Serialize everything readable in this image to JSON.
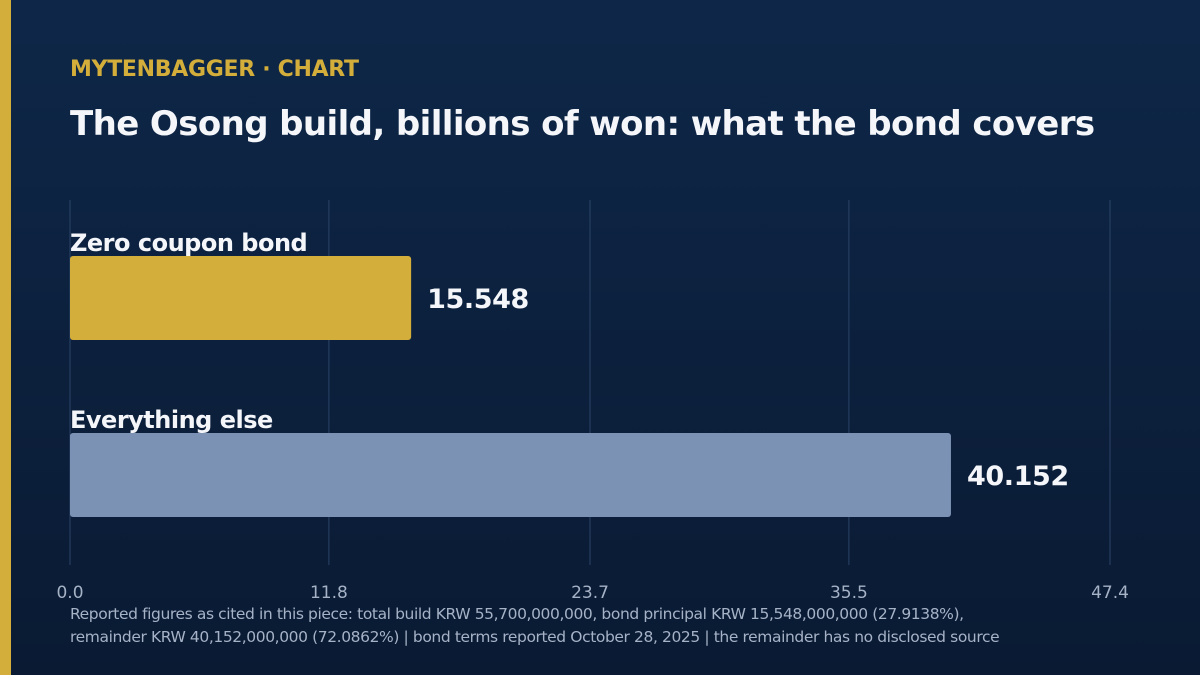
{
  "header": {
    "kicker": "MYTENBAGGER · CHART"
  },
  "chart_data": {
    "type": "bar",
    "orientation": "horizontal",
    "title": "The Osong build, billions of won: what the bond covers",
    "categories": [
      "Zero coupon bond",
      "Everything else"
    ],
    "values": [
      15.548,
      40.152
    ],
    "value_labels": [
      "15.548",
      "40.152"
    ],
    "bar_colors": [
      "#d4ae3a",
      "#7b92b4"
    ],
    "xlim": [
      0,
      47.4
    ],
    "xticks": [
      0,
      11.8,
      23.7,
      35.5,
      47.4
    ],
    "xtick_labels": [
      "0.0",
      "11.8",
      "23.7",
      "35.5",
      "47.4"
    ],
    "xlabel": "",
    "ylabel": "",
    "grid": "vertical",
    "legend": "none"
  },
  "footnote": {
    "line1": "Reported figures as cited in this piece: total build KRW 55,700,000,000, bond principal KRW 15,548,000,000 (27.9138%),",
    "line2": "remainder KRW 40,152,000,000 (72.0862%) | bond terms reported October 28, 2025 | the remainder has no disclosed source"
  },
  "colors": {
    "background": "#0e2748",
    "accent": "#d4ae3a",
    "secondary_bar": "#7b92b4",
    "text": "#f4f6fa",
    "muted_text": "#a6b2c6",
    "gridline": "#2c4468"
  }
}
